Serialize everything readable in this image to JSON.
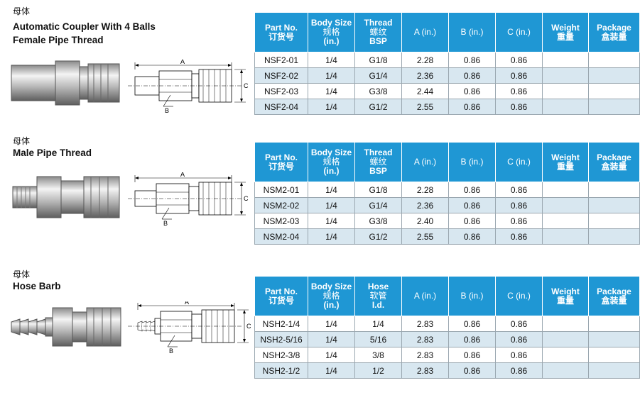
{
  "sections": [
    {
      "cn_label": "母体",
      "title_lines": [
        "Automatic Coupler With 4 Balls",
        "Female Pipe Thread"
      ],
      "headers": {
        "part_no": [
          "Part No.",
          "订货号"
        ],
        "body_size": [
          "Body Size",
          "规格",
          "(in.)"
        ],
        "col3": [
          "Thread",
          "螺纹",
          "BSP"
        ],
        "a": "A (in.)",
        "b": "B (in.)",
        "c": "C (in.)",
        "weight": [
          "Weight",
          "重量"
        ],
        "package": [
          "Package",
          "盒装量"
        ]
      },
      "rows": [
        [
          "NSF2-01",
          "1/4",
          "G1/8",
          "2.28",
          "0.86",
          "0.86",
          "",
          ""
        ],
        [
          "NSF2-02",
          "1/4",
          "G1/4",
          "2.36",
          "0.86",
          "0.86",
          "",
          ""
        ],
        [
          "NSF2-03",
          "1/4",
          "G3/8",
          "2.44",
          "0.86",
          "0.86",
          "",
          ""
        ],
        [
          "NSF2-04",
          "1/4",
          "G1/2",
          "2.55",
          "0.86",
          "0.86",
          "",
          ""
        ]
      ],
      "dims": [
        "A",
        "B",
        "C"
      ]
    },
    {
      "cn_label": "母体",
      "title_lines": [
        "Male Pipe Thread"
      ],
      "headers": {
        "part_no": [
          "Part No.",
          "订货号"
        ],
        "body_size": [
          "Body Size",
          "规格",
          "(in.)"
        ],
        "col3": [
          "Thread",
          "螺纹",
          "BSP"
        ],
        "a": "A (in.)",
        "b": "B (in.)",
        "c": "C (in.)",
        "weight": [
          "Weight",
          "重量"
        ],
        "package": [
          "Package",
          "盒装量"
        ]
      },
      "rows": [
        [
          "NSM2-01",
          "1/4",
          "G1/8",
          "2.28",
          "0.86",
          "0.86",
          "",
          ""
        ],
        [
          "NSM2-02",
          "1/4",
          "G1/4",
          "2.36",
          "0.86",
          "0.86",
          "",
          ""
        ],
        [
          "NSM2-03",
          "1/4",
          "G3/8",
          "2.40",
          "0.86",
          "0.86",
          "",
          ""
        ],
        [
          "NSM2-04",
          "1/4",
          "G1/2",
          "2.55",
          "0.86",
          "0.86",
          "",
          ""
        ]
      ],
      "dims": [
        "A",
        "B",
        "C"
      ]
    },
    {
      "cn_label": "母体",
      "title_lines": [
        "Hose Barb"
      ],
      "headers": {
        "part_no": [
          "Part No.",
          "订货号"
        ],
        "body_size": [
          "Body Size",
          "规格",
          "(in.)"
        ],
        "col3": [
          "Hose",
          "软管",
          "I.d."
        ],
        "a": "A (in.)",
        "b": "B (in.)",
        "c": "C (in.)",
        "weight": [
          "Weight",
          "重量"
        ],
        "package": [
          "Package",
          "盒装量"
        ]
      },
      "rows": [
        [
          "NSH2-1/4",
          "1/4",
          "1/4",
          "2.83",
          "0.86",
          "0.86",
          "",
          ""
        ],
        [
          "NSH2-5/16",
          "1/4",
          "5/16",
          "2.83",
          "0.86",
          "0.86",
          "",
          ""
        ],
        [
          "NSH2-3/8",
          "1/4",
          "3/8",
          "2.83",
          "0.86",
          "0.86",
          "",
          ""
        ],
        [
          "NSH2-1/2",
          "1/4",
          "1/2",
          "2.83",
          "0.86",
          "0.86",
          "",
          ""
        ]
      ],
      "dims": [
        "A",
        "B",
        "C"
      ]
    }
  ]
}
